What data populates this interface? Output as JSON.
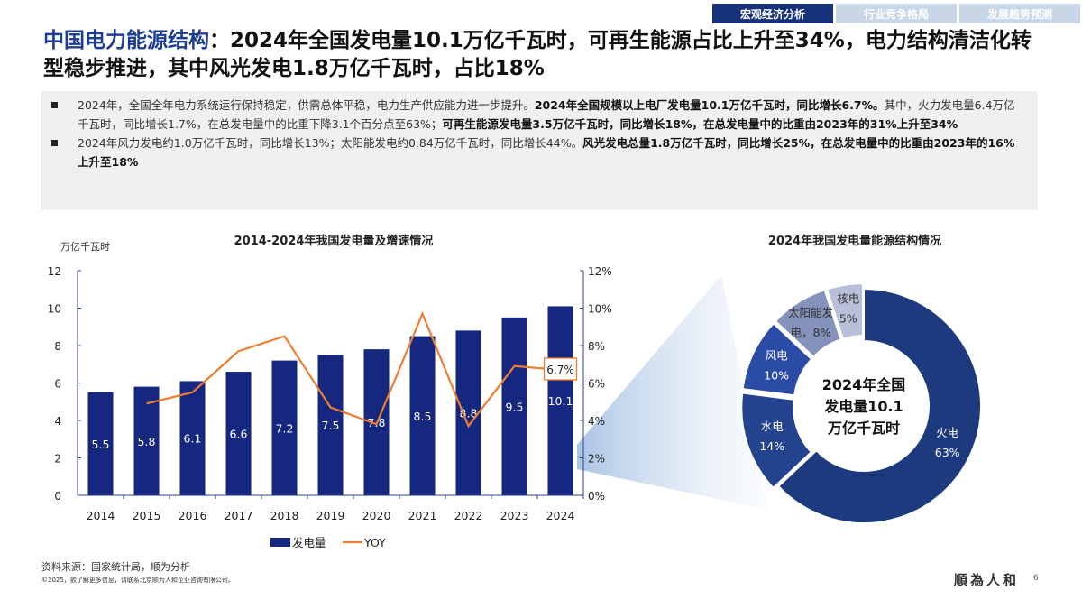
{
  "tabs": [
    {
      "label": "宏观经济分析",
      "active": true
    },
    {
      "label": "行业竞争格局",
      "active": false
    },
    {
      "label": "发展趋势预测",
      "active": false
    }
  ],
  "title": {
    "highlight": "中国电力能源结构",
    "rest": "：2024年全国发电量10.1万亿千瓦时，可再生能源占比上升至34%，电力结构清洁化转型稳步推进，其中风光发电1.8万亿千瓦时，占比18%"
  },
  "summary": [
    [
      {
        "t": "2024年，全国全年电力系统运行保持稳定，供需总体平稳，电力生产供应能力进一步提升。",
        "b": false
      },
      {
        "t": "2024年全国规模以上电厂发电量10.1万亿千瓦时，同比增长6.7%。",
        "b": true
      },
      {
        "t": "其中，火力发电量6.4万亿千瓦时，同比增长1.7%，在总发电量中的比重下降3.1个百分点至63%；",
        "b": false
      },
      {
        "t": "可再生能源发电量3.5万亿千瓦时，同比增长18%，在总发电量中的比重由2023年的31%上升至34%",
        "b": true
      }
    ],
    [
      {
        "t": "2024年风力发电约1.0万亿千瓦时，同比增长13%；太阳能发电约0.84万亿千瓦时，同比增长44%。",
        "b": false
      },
      {
        "t": "风光发电总量1.8万亿千瓦时，同比增长25%，在总发电量中的比重由2023年的16%上升至18%",
        "b": true
      }
    ]
  ],
  "chart_data": [
    {
      "type": "bar+line",
      "title": "2014-2024年我国发电量及增速情况",
      "ylabel": "万亿千瓦时",
      "ylim": [
        0,
        12
      ],
      "yticks": [
        "0",
        "2",
        "4",
        "6",
        "8",
        "10",
        "12"
      ],
      "y2lim": [
        0,
        12
      ],
      "y2ticks": [
        "0%",
        "2%",
        "4%",
        "6%",
        "8%",
        "10%",
        "12%"
      ],
      "categories": [
        "2014",
        "2015",
        "2016",
        "2017",
        "2018",
        "2019",
        "2020",
        "2021",
        "2022",
        "2023",
        "2024"
      ],
      "series": [
        {
          "name": "发电量",
          "type": "bar",
          "color": "#15277f",
          "values": [
            5.5,
            5.8,
            6.1,
            6.6,
            7.2,
            7.5,
            7.8,
            8.5,
            8.8,
            9.5,
            10.1
          ],
          "labels": [
            "5.5",
            "5.8",
            "6.1",
            "6.6",
            "7.2",
            "7.5",
            "7.8",
            "8.5",
            "8.8",
            "9.5",
            "10.1"
          ]
        },
        {
          "name": "YOY",
          "type": "line",
          "axis": "right",
          "color": "#ed7d31",
          "values": [
            null,
            4.9,
            5.5,
            7.7,
            8.5,
            4.7,
            3.8,
            9.7,
            3.7,
            6.9,
            6.7
          ]
        }
      ],
      "annotation": "6.7%",
      "legend": "bottom"
    },
    {
      "type": "pie",
      "title": "2024年我国发电量能源结构情况",
      "center_label": [
        "2024年全国",
        "发电量10.1",
        "万亿千瓦时"
      ],
      "slices": [
        {
          "name": "火电",
          "label": "63%",
          "value": 63,
          "color": "#1d3a7e"
        },
        {
          "name": "水电",
          "label": "14%",
          "value": 14,
          "color": "#24438f"
        },
        {
          "name": "风电",
          "label": "10%",
          "value": 10,
          "color": "#2b4ca6"
        },
        {
          "name": "太阳能发电",
          "label": [
            "太阳能发",
            "电，8%"
          ],
          "value": 8,
          "color": "#8592bb"
        },
        {
          "name": "核电",
          "label": [
            "核电",
            "5%"
          ],
          "value": 5,
          "color": "#b9bfd9"
        }
      ]
    }
  ],
  "footer": {
    "source": "资料来源：国家统计局，顺为分析",
    "copyright": "©2025，欲了解更多信息，请联系北京顺为人和企业咨询有限公司。",
    "logo": "順為人和",
    "page": "6"
  }
}
